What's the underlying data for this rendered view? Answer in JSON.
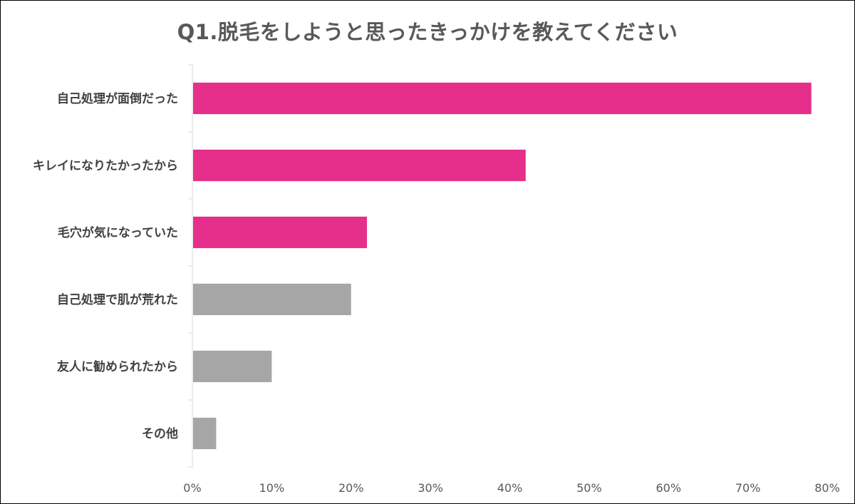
{
  "chart_data": {
    "type": "bar",
    "orientation": "horizontal",
    "title": "Q1.脱毛をしようと思ったきっかけを教えてください",
    "categories": [
      "自己処理が面倒だった",
      "キレイになりたかったから",
      "毛穴が気になっていた",
      "自己処理で肌が荒れた",
      "友人に勧められたから",
      "その他"
    ],
    "values": [
      78,
      42,
      22,
      20,
      10,
      3
    ],
    "unit": "%",
    "xlim": [
      0,
      80
    ],
    "xticks": [
      "0%",
      "10%",
      "20%",
      "30%",
      "40%",
      "50%",
      "60%",
      "70%",
      "80%"
    ],
    "bar_colors": [
      "#E62E8B",
      "#E62E8B",
      "#E62E8B",
      "#A6A6A6",
      "#A6A6A6",
      "#A6A6A6"
    ],
    "grid": false,
    "legend": "none"
  }
}
